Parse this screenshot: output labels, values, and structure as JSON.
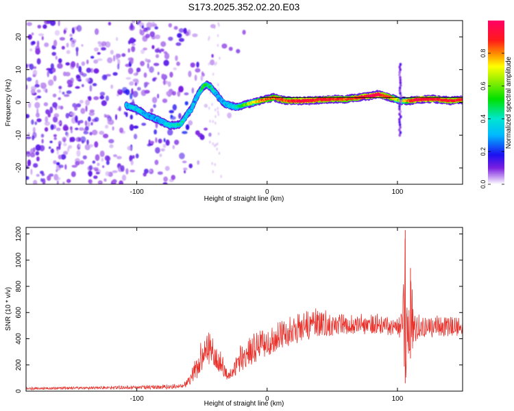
{
  "title": "S173.2025.352.02.20.E03",
  "chart_data": [
    {
      "type": "heatmap",
      "xlabel": "Height of straight line (km)",
      "ylabel": "Frequency (Hz)",
      "xlim": [
        -185,
        150
      ],
      "ylim": [
        -25,
        25
      ],
      "xticks": [
        -100,
        0,
        100
      ],
      "xtick_labels": [
        "-100",
        "0",
        "100"
      ],
      "yticks": [
        -20,
        -10,
        0,
        10,
        20
      ],
      "ytick_labels": [
        "-20",
        "-10",
        "0",
        "10",
        "20"
      ],
      "colorbar": {
        "label": "Normalized spectral amplitude",
        "range": [
          0,
          1
        ],
        "ticks": [
          0,
          0.2,
          0.4,
          0.6,
          0.8
        ],
        "tick_labels": [
          "0.0",
          "0.2",
          "0.4",
          "0.6",
          "0.8"
        ]
      },
      "ridge": {
        "x": [
          -108,
          -100,
          -92,
          -85,
          -80,
          -75,
          -70,
          -66,
          -62,
          -58,
          -55,
          -52,
          -49,
          -46,
          -43,
          -40,
          -36,
          -32,
          -28,
          -24,
          -20,
          -15,
          -10,
          -5,
          0,
          5,
          10,
          15,
          20,
          30,
          40,
          50,
          60,
          70,
          80,
          85,
          90,
          95,
          98,
          102,
          105,
          110,
          115,
          120,
          130,
          140,
          150
        ],
        "y": [
          -1,
          -2,
          -4,
          -5,
          -6,
          -7,
          -7,
          -6.5,
          -4,
          -2,
          1,
          3,
          5,
          5.5,
          4.5,
          3,
          1,
          -0.5,
          -1,
          -1.5,
          -1,
          -0.5,
          0,
          0.5,
          1,
          1.5,
          1,
          0.5,
          0.5,
          0.5,
          0.8,
          1,
          1,
          1.5,
          2,
          2.5,
          2,
          1.5,
          1,
          0.5,
          0.5,
          0.5,
          0.8,
          1,
          1,
          0.5,
          0.8
        ],
        "amplitude": [
          0.3,
          0.35,
          0.3,
          0.3,
          0.3,
          0.35,
          0.4,
          0.4,
          0.3,
          0.3,
          0.3,
          0.4,
          0.5,
          0.5,
          0.45,
          0.3,
          0.3,
          0.3,
          0.35,
          0.4,
          0.5,
          0.6,
          0.7,
          0.8,
          0.85,
          0.8,
          0.9,
          0.85,
          0.9,
          0.95,
          0.9,
          0.9,
          0.85,
          0.9,
          0.95,
          0.95,
          0.9,
          0.85,
          0.7,
          0.6,
          0.7,
          0.85,
          0.95,
          0.95,
          0.9,
          0.9,
          0.9
        ]
      },
      "artifact": {
        "x": 102,
        "y_range": [
          -10,
          12
        ]
      }
    },
    {
      "type": "line",
      "xlabel": "Height of straight line (km)",
      "ylabel": "SNR (10 * v/v)",
      "xlim": [
        -185,
        150
      ],
      "ylim": [
        0,
        1250
      ],
      "xticks": [
        -100,
        0,
        100
      ],
      "xtick_labels": [
        "-100",
        "0",
        "100"
      ],
      "yticks": [
        0,
        200,
        400,
        600,
        800,
        1000,
        1200
      ],
      "ytick_labels": [
        "0",
        "200",
        "400",
        "600",
        "800",
        "1000",
        "1200"
      ],
      "color": "#e8302a",
      "envelope": {
        "x": [
          -185,
          -120,
          -80,
          -65,
          -60,
          -55,
          -50,
          -47,
          -44,
          -40,
          -35,
          -30,
          -25,
          -20,
          -15,
          -10,
          -5,
          0,
          10,
          20,
          30,
          40,
          50,
          60,
          70,
          80,
          90,
          100,
          104,
          106,
          108,
          110,
          114,
          120,
          130,
          140,
          150
        ],
        "base": [
          10,
          15,
          15,
          20,
          40,
          80,
          140,
          180,
          200,
          150,
          120,
          80,
          100,
          150,
          180,
          210,
          240,
          260,
          310,
          350,
          390,
          410,
          420,
          430,
          430,
          430,
          430,
          420,
          380,
          40,
          80,
          250,
          380,
          410,
          410,
          420,
          420
        ],
        "peak": [
          30,
          40,
          50,
          60,
          120,
          250,
          400,
          480,
          470,
          400,
          300,
          150,
          250,
          380,
          420,
          450,
          470,
          480,
          540,
          580,
          620,
          640,
          600,
          600,
          600,
          600,
          590,
          580,
          700,
          1230,
          900,
          940,
          600,
          570,
          580,
          570,
          560
        ]
      }
    }
  ]
}
